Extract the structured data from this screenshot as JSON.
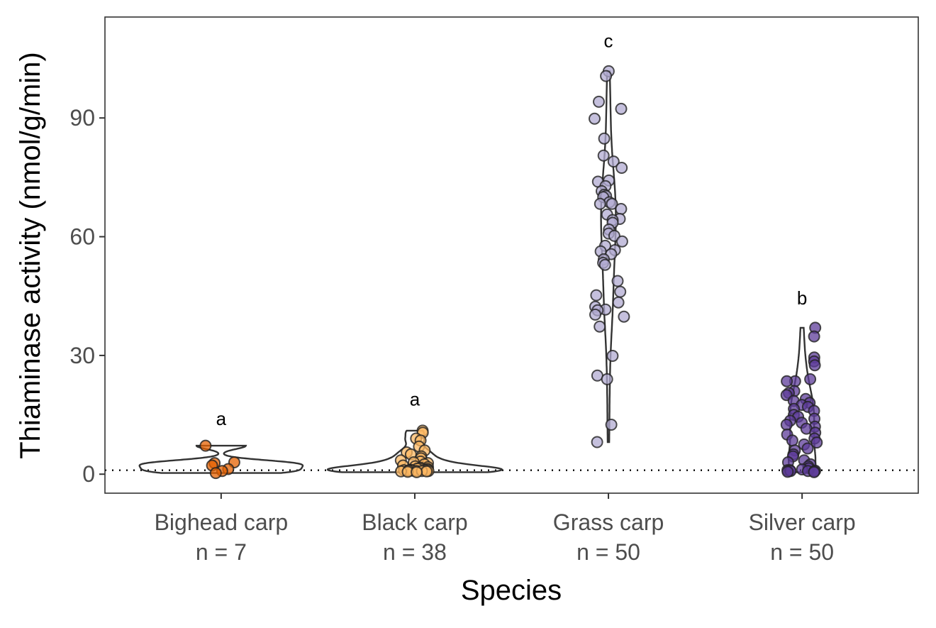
{
  "chart_data": {
    "type": "violin-jitter",
    "title": "",
    "xlabel": "Species",
    "ylabel": "Thiaminase activity (nmol/g/min)",
    "ylim": [
      -4.8,
      115.5
    ],
    "yticks": [
      0,
      30,
      60,
      90
    ],
    "reference_line": {
      "y": 1,
      "style": "dotted"
    },
    "grid": false,
    "groups": [
      {
        "name": "Bighead carp",
        "n_label": "n = 7",
        "letter": "a",
        "letter_y": 14,
        "color": "#e66101",
        "values": [
          7.2,
          3.0,
          2.8,
          2.2,
          1.3,
          0.8,
          0.3
        ]
      },
      {
        "name": "Black carp",
        "n_label": "n = 38",
        "letter": "a",
        "letter_y": 19,
        "color": "#fdb863",
        "values": [
          11,
          10.5,
          9,
          8.5,
          7,
          6,
          5.5,
          5,
          4.5,
          4,
          3.5,
          3.2,
          3,
          2.8,
          2.5,
          2.2,
          2,
          1.8,
          1.6,
          1.5,
          1.4,
          1.3,
          1.2,
          1.1,
          1.0,
          1.0,
          1.0,
          1.0,
          0.9,
          0.9,
          0.9,
          0.8,
          0.8,
          0.8,
          0.7,
          0.7,
          0.6,
          0.5
        ]
      },
      {
        "name": "Grass carp",
        "n_label": "n = 50",
        "letter": "c",
        "letter_y": 109.5,
        "color": "#b2abd2",
        "values": [
          101.8,
          100.6,
          94.1,
          92.3,
          89.8,
          84.8,
          80.5,
          79,
          77.4,
          74.2,
          73.9,
          72.8,
          71.5,
          70.6,
          70.3,
          70,
          68.7,
          68.3,
          68.3,
          67,
          65.6,
          64.5,
          64.2,
          63.5,
          61.8,
          60.8,
          60.2,
          58.8,
          57.7,
          56.6,
          56.3,
          55.6,
          54.3,
          53.4,
          52.9,
          48.8,
          46.1,
          45.2,
          43.4,
          42.3,
          41.6,
          41.4,
          40.3,
          39.8,
          37.3,
          29.9,
          24.9,
          24,
          12.5,
          8.1
        ]
      },
      {
        "name": "Silver carp",
        "n_label": "n = 50",
        "letter": "b",
        "letter_y": 44.5,
        "color": "#5e3c99",
        "values": [
          37,
          34.8,
          29.5,
          28.5,
          27.5,
          24,
          23.5,
          23.5,
          21,
          20.5,
          20,
          19,
          18.5,
          18,
          17.5,
          17,
          16.5,
          16,
          15,
          14.5,
          14,
          13.5,
          13,
          12.5,
          12,
          11.5,
          10.5,
          10,
          9,
          8.5,
          8,
          7.5,
          6.5,
          6,
          5,
          4.5,
          3.5,
          3,
          2.5,
          2,
          1.5,
          1.2,
          1.0,
          1.0,
          0.9,
          0.8,
          0.8,
          0.7,
          0.6,
          0.5
        ]
      }
    ]
  }
}
